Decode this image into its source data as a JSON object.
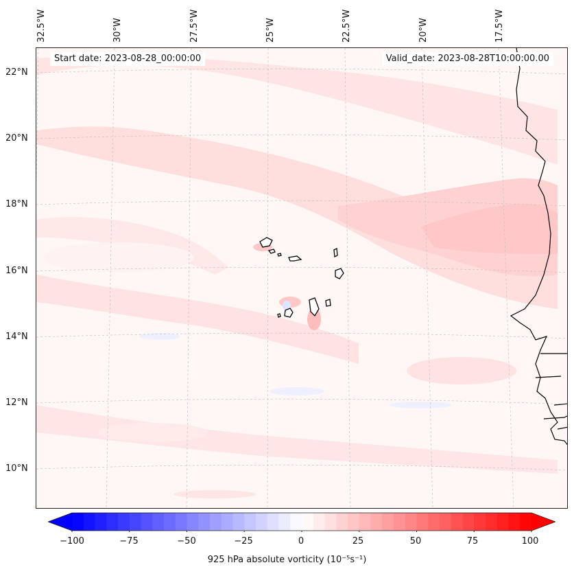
{
  "map": {
    "start_label": "Start date: 2023-08-28_00:00:00",
    "valid_label": "Valid_date: 2023-08-28T10:00:00.00",
    "lon_labels": [
      "32.5°W",
      "30°W",
      "27.5°W",
      "25°W",
      "22.5°W",
      "20°W",
      "17.5°W"
    ],
    "lat_labels": [
      "22°N",
      "20°N",
      "18°N",
      "16°N",
      "14°N",
      "12°N",
      "10°N"
    ],
    "colors": {
      "background": "#fff6f6",
      "light_red": "#ffe2e2",
      "mid_red": "#ffd0d0",
      "deep_red": "#ffb4b4",
      "light_blue": "#e4e8ff",
      "mid_blue": "#c6ccff",
      "coast": "#000000",
      "grid": "#bdbdbd"
    }
  },
  "colorbar": {
    "title": "925 hPa absolute vorticity (10⁻⁵s⁻¹)",
    "ticks": [
      "−100",
      "−75",
      "−50",
      "−25",
      "0",
      "25",
      "50",
      "75",
      "100"
    ],
    "min": -100,
    "max": 100,
    "low_color": "#0000ff",
    "mid_color": "#ffffff",
    "high_color": "#ff0000"
  }
}
